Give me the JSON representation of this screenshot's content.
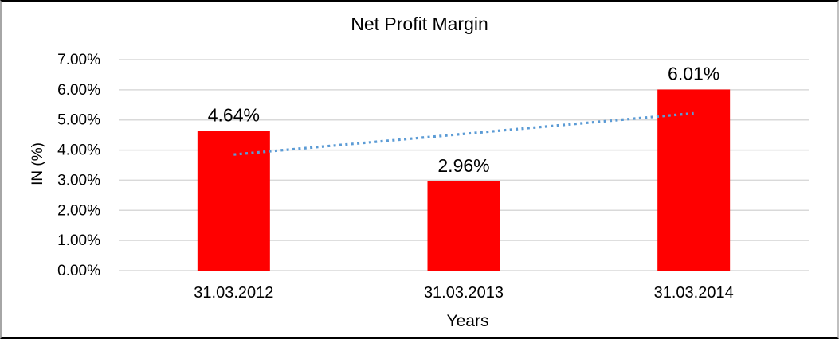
{
  "chart_data": {
    "type": "bar",
    "title": "Net Profit Margin",
    "xlabel": "Years",
    "ylabel": "IN (%)",
    "categories": [
      "31.03.2012",
      "31.03.2013",
      "31.03.2014"
    ],
    "series": [
      {
        "name": "Net Profit Margin",
        "values": [
          4.64,
          2.96,
          6.01
        ]
      }
    ],
    "data_labels": [
      "4.64%",
      "2.96%",
      "6.01%"
    ],
    "ylim": [
      0,
      7
    ],
    "ytick_step": 1,
    "ytick_labels": [
      "0.00%",
      "1.00%",
      "2.00%",
      "3.00%",
      "4.00%",
      "5.00%",
      "6.00%",
      "7.00%"
    ],
    "grid": true,
    "legend": "none",
    "bar_color": "#ff0000",
    "gridline_color": "#d9d9d9",
    "text_color": "#000000",
    "background_color": "#ffffff",
    "trendline": {
      "type": "linear",
      "style": "dotted",
      "color": "#5b9bd5",
      "start_value": 3.85,
      "end_value": 5.22
    }
  }
}
